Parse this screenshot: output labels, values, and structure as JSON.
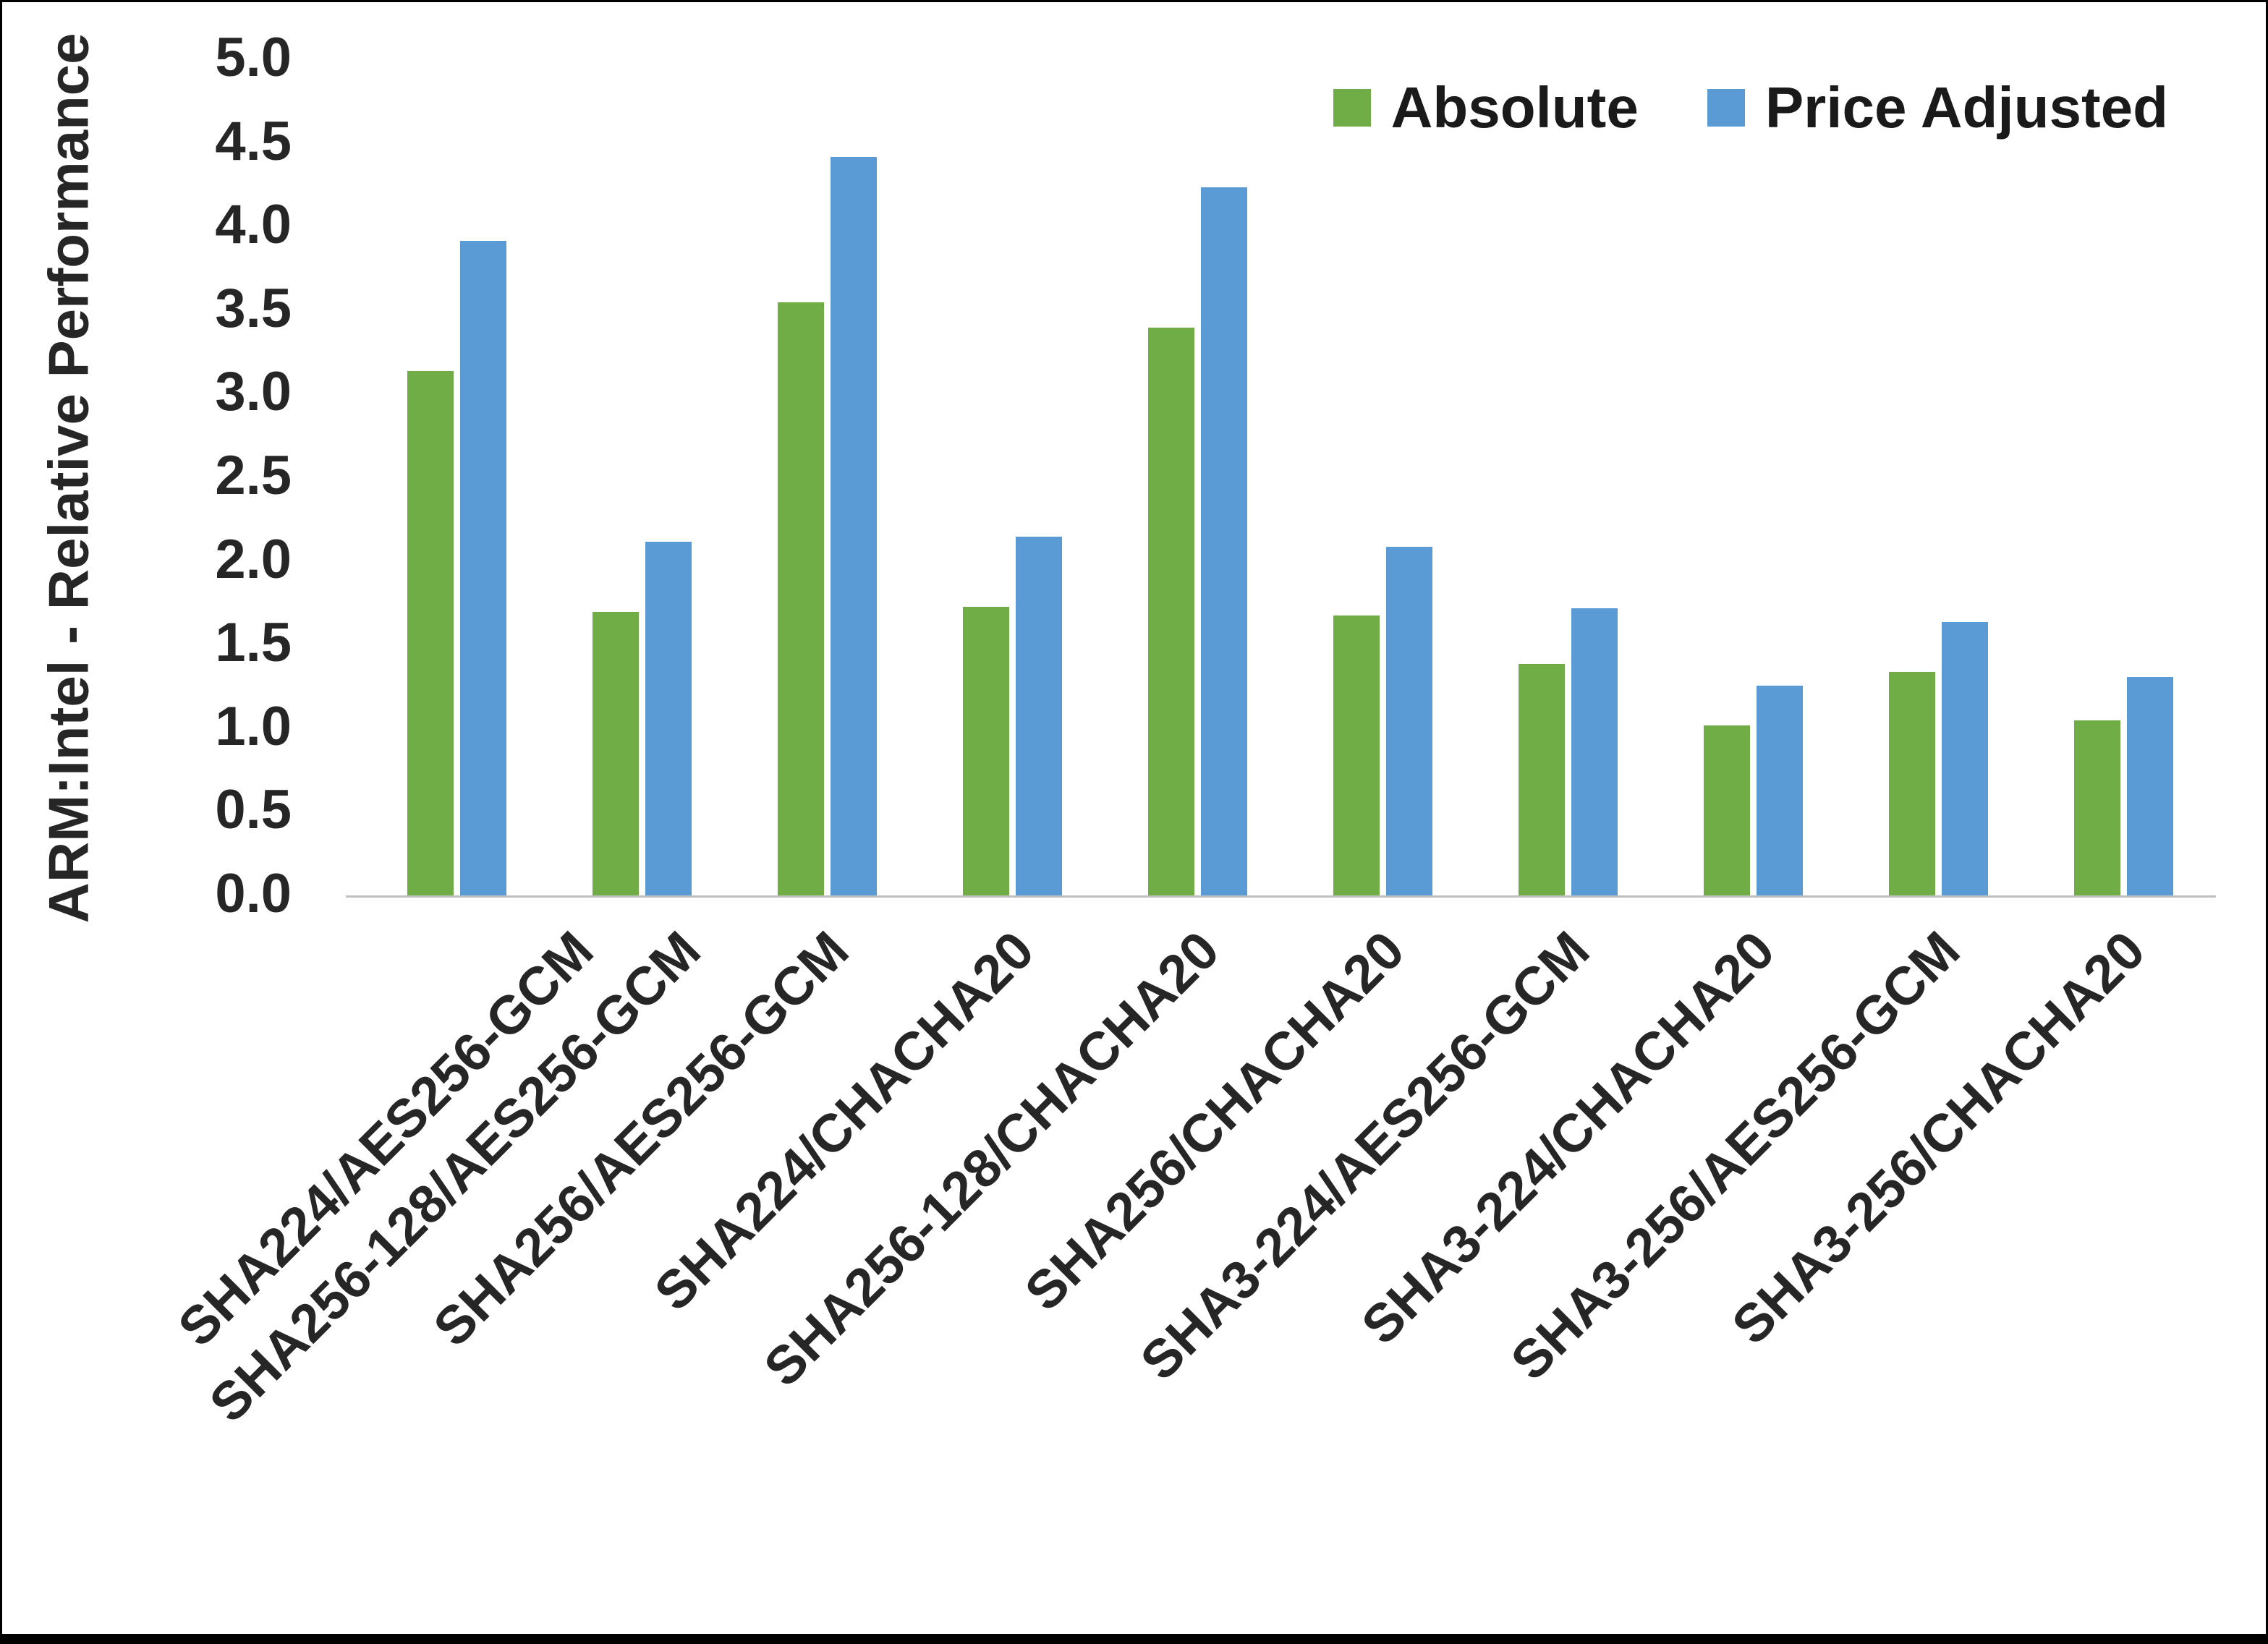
{
  "chart_data": {
    "type": "bar",
    "title": "",
    "xlabel": "",
    "ylabel": "ARM:Intel - Relative Performance",
    "ylim": [
      0,
      5
    ],
    "ytick_step": 0.5,
    "grid": false,
    "legend_position": "top-right",
    "x_label_rotation_deg": -45,
    "categories": [
      "SHA224/AES256-GCM",
      "SHA256-128/AES256-GCM",
      "SHA256/AES256-GCM",
      "SHA224/CHACHA20",
      "SHA256-128/CHACHA20",
      "SHA256/CHACHA20",
      "SHA3-224/AES256-GCM",
      "SHA3-224/CHACHA20",
      "SHA3-256/AES256-GCM",
      "SHA3-256/CHACHA20"
    ],
    "series": [
      {
        "name": "Absolute",
        "color": "#70AD47",
        "values": [
          3.14,
          1.7,
          3.55,
          1.73,
          3.4,
          1.68,
          1.39,
          1.02,
          1.34,
          1.05
        ]
      },
      {
        "name": "Price Adjusted",
        "color": "#5B9BD5",
        "values": [
          3.92,
          2.12,
          4.42,
          2.15,
          4.24,
          2.09,
          1.72,
          1.26,
          1.64,
          1.31
        ]
      }
    ]
  }
}
